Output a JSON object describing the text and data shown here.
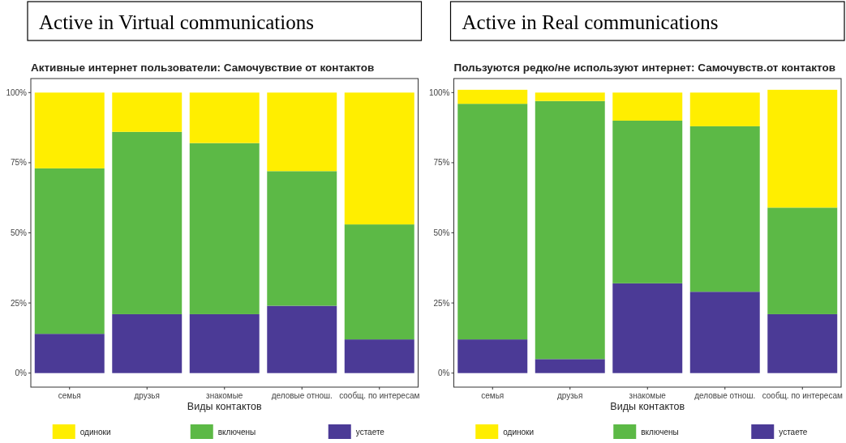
{
  "chart_data": [
    {
      "type": "bar",
      "stacked": true,
      "title": "Active in Virtual communications",
      "subtitle": "Активные интернет пользователи: Самочувствие от контактов",
      "xlabel": "Виды контактов",
      "categories": [
        "семья",
        "друзья",
        "знакомые",
        "деловые отнош.",
        "сообщ. по интересам"
      ],
      "legend": "bottom",
      "ylim": [
        -5,
        105
      ],
      "yticks": [
        {
          "value": 0,
          "label": "0%"
        },
        {
          "value": 25,
          "label": "25%"
        },
        {
          "value": 50,
          "label": "50%"
        },
        {
          "value": 75,
          "label": "75%"
        },
        {
          "value": 100,
          "label": "100%"
        }
      ],
      "series": [
        {
          "name": "устаете",
          "color": "#4b3a96",
          "values": [
            14,
            21,
            21,
            24,
            12
          ]
        },
        {
          "name": "включены",
          "color": "#5cb946",
          "values": [
            59,
            65,
            61,
            48,
            41
          ]
        },
        {
          "name": "одиноки",
          "color": "#ffee00",
          "values": [
            27,
            14,
            18,
            28,
            47
          ]
        }
      ]
    },
    {
      "type": "bar",
      "stacked": true,
      "title": "Active in Real communications",
      "subtitle": "Пользуются редко/не используют интернет: Самочувств.от контактов",
      "xlabel": "Виды контактов",
      "categories": [
        "семья",
        "друзья",
        "знакомые",
        "деловые отнош.",
        "сообщ. по интересам"
      ],
      "legend": "bottom",
      "ylim": [
        -5,
        105
      ],
      "yticks": [
        {
          "value": 0,
          "label": "0%"
        },
        {
          "value": 25,
          "label": "25%"
        },
        {
          "value": 50,
          "label": "50%"
        },
        {
          "value": 75,
          "label": "75%"
        },
        {
          "value": 100,
          "label": "100%"
        }
      ],
      "series": [
        {
          "name": "устаете",
          "color": "#4b3a96",
          "values": [
            12,
            5,
            32,
            29,
            21
          ]
        },
        {
          "name": "включены",
          "color": "#5cb946",
          "values": [
            84,
            92,
            58,
            59,
            38
          ]
        },
        {
          "name": "одиноки",
          "color": "#ffee00",
          "values": [
            5,
            3,
            10,
            12,
            42
          ]
        }
      ]
    }
  ]
}
